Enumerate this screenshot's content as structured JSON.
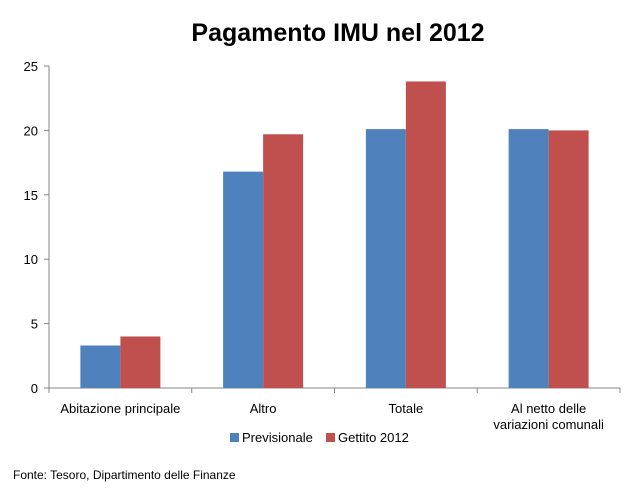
{
  "chart_data": {
    "type": "bar",
    "title": "Pagamento IMU nel 2012",
    "categories": [
      [
        "Abitazione principale"
      ],
      [
        "Altro"
      ],
      [
        "Totale"
      ],
      [
        "Al netto delle",
        "variazioni comunali"
      ]
    ],
    "series": [
      {
        "name": "Previsionale",
        "color": "#4F81BD",
        "values": [
          3.3,
          16.8,
          20.1,
          20.1
        ]
      },
      {
        "name": "Gettito 2012",
        "color": "#C0504D",
        "values": [
          4.0,
          19.7,
          23.8,
          20.0
        ]
      }
    ],
    "ylim": [
      0,
      25
    ],
    "yticks": [
      0,
      5,
      10,
      15,
      20,
      25
    ],
    "grid": false,
    "legend_position": "bottom",
    "source": "Fonte: Tesoro, Dipartimento delle Finanze"
  }
}
